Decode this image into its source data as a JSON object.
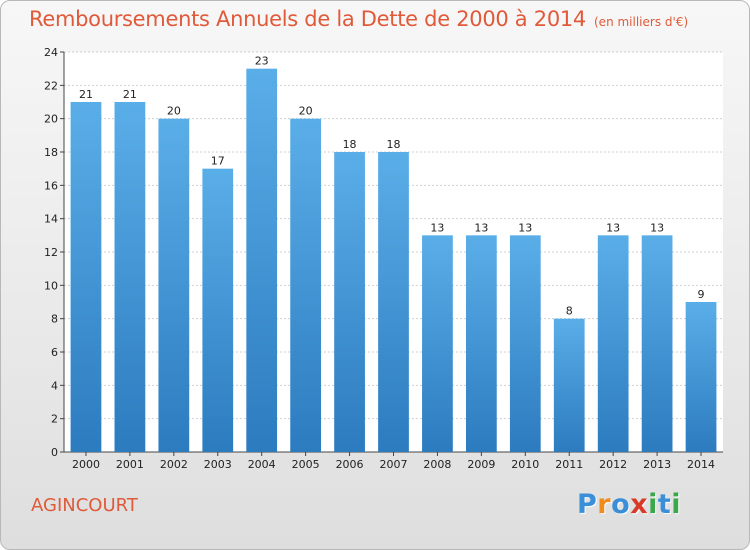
{
  "header": {
    "title": "Remboursements Annuels de la Dette de 2000 à 2014",
    "unit": "(en milliers d'€)"
  },
  "footer": {
    "town": "AGINCOURT",
    "logo": {
      "letters": [
        "P",
        "r",
        "o",
        "x",
        "i",
        "t",
        "i"
      ],
      "colors": [
        "#3a8fd8",
        "#f08c1e",
        "#3a8fd8",
        "#d83a2a",
        "#3aa84a",
        "#3a8fd8",
        "#3aa84a"
      ]
    }
  },
  "chart_data": {
    "type": "bar",
    "title": "Remboursements Annuels de la Dette de 2000 à 2014",
    "subtitle": "(en milliers d'€)",
    "xlabel": "",
    "ylabel": "",
    "categories": [
      "2000",
      "2001",
      "2002",
      "2003",
      "2004",
      "2005",
      "2006",
      "2007",
      "2008",
      "2009",
      "2010",
      "2011",
      "2012",
      "2013",
      "2014"
    ],
    "values": [
      21,
      21,
      20,
      17,
      23,
      20,
      18,
      18,
      13,
      13,
      13,
      8,
      13,
      13,
      9
    ],
    "data_labels": [
      "21",
      "21",
      "20",
      "17",
      "23",
      "20",
      "18",
      "18",
      "13",
      "13",
      "13",
      "8",
      "13",
      "13",
      "9"
    ],
    "ylim": [
      0,
      24
    ],
    "yticks": [
      0,
      2,
      4,
      6,
      8,
      10,
      12,
      14,
      16,
      18,
      20,
      22,
      24
    ],
    "grid": true,
    "colors": {
      "bar_top": "#5aaee8",
      "bar_bottom": "#2c7bbf",
      "plot_bg": "#ffffff",
      "grid": "#cfcfcf"
    }
  }
}
